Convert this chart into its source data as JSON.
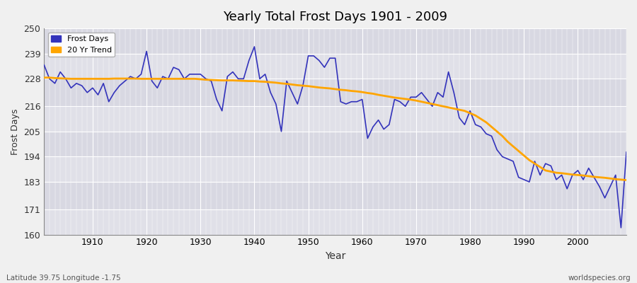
{
  "title": "Yearly Total Frost Days 1901 - 2009",
  "xlabel": "Year",
  "ylabel": "Frost Days",
  "footer_left": "Latitude 39.75 Longitude -1.75",
  "footer_right": "worldspecies.org",
  "legend_labels": [
    "Frost Days",
    "20 Yr Trend"
  ],
  "line_color": "#3333bb",
  "trend_color": "#FFA500",
  "background_color": "#f0f0f0",
  "plot_bg_color": "#e8e8ee",
  "ylim": [
    160,
    250
  ],
  "yticks": [
    160,
    171,
    183,
    194,
    205,
    216,
    228,
    239,
    250
  ],
  "xlim": [
    1901,
    2009
  ],
  "years": [
    1901,
    1902,
    1903,
    1904,
    1905,
    1906,
    1907,
    1908,
    1909,
    1910,
    1911,
    1912,
    1913,
    1914,
    1915,
    1916,
    1917,
    1918,
    1919,
    1920,
    1921,
    1922,
    1923,
    1924,
    1925,
    1926,
    1927,
    1928,
    1929,
    1930,
    1931,
    1932,
    1933,
    1934,
    1935,
    1936,
    1937,
    1938,
    1939,
    1940,
    1941,
    1942,
    1943,
    1944,
    1945,
    1946,
    1947,
    1948,
    1949,
    1950,
    1951,
    1952,
    1953,
    1954,
    1955,
    1956,
    1957,
    1958,
    1959,
    1960,
    1961,
    1962,
    1963,
    1964,
    1965,
    1966,
    1967,
    1968,
    1969,
    1970,
    1971,
    1972,
    1973,
    1974,
    1975,
    1976,
    1977,
    1978,
    1979,
    1980,
    1981,
    1982,
    1983,
    1984,
    1985,
    1986,
    1987,
    1988,
    1989,
    1990,
    1991,
    1992,
    1993,
    1994,
    1995,
    1996,
    1997,
    1998,
    1999,
    2000,
    2001,
    2002,
    2003,
    2004,
    2005,
    2006,
    2007,
    2008,
    2009
  ],
  "frost_days": [
    234,
    228,
    226,
    231,
    228,
    224,
    226,
    225,
    222,
    224,
    221,
    226,
    218,
    222,
    225,
    227,
    229,
    228,
    230,
    240,
    227,
    224,
    229,
    228,
    233,
    232,
    228,
    230,
    230,
    230,
    228,
    227,
    219,
    214,
    229,
    231,
    228,
    228,
    236,
    242,
    228,
    230,
    222,
    217,
    205,
    227,
    222,
    217,
    225,
    238,
    238,
    236,
    233,
    237,
    237,
    218,
    217,
    218,
    218,
    219,
    202,
    207,
    210,
    206,
    208,
    219,
    218,
    216,
    220,
    220,
    222,
    219,
    216,
    222,
    220,
    231,
    222,
    211,
    208,
    214,
    208,
    207,
    204,
    203,
    197,
    194,
    193,
    192,
    185,
    184,
    183,
    192,
    186,
    191,
    190,
    184,
    186,
    180,
    186,
    188,
    184,
    189,
    185,
    181,
    176,
    181,
    186,
    163,
    196
  ],
  "trend": [
    228.5,
    228.5,
    228.3,
    228.2,
    228.1,
    228.0,
    228.0,
    228.0,
    228.0,
    228.0,
    228.0,
    228.0,
    228.0,
    228.1,
    228.1,
    228.1,
    228.1,
    228.1,
    228.0,
    228.0,
    228.0,
    228.0,
    228.0,
    228.0,
    228.0,
    228.0,
    228.0,
    228.0,
    228.0,
    227.8,
    227.6,
    227.5,
    227.4,
    227.3,
    227.3,
    227.3,
    227.2,
    227.1,
    227.0,
    227.0,
    226.8,
    226.7,
    226.5,
    226.3,
    226.0,
    225.8,
    225.5,
    225.2,
    225.0,
    224.8,
    224.5,
    224.2,
    224.0,
    223.8,
    223.5,
    223.2,
    223.0,
    222.7,
    222.5,
    222.2,
    221.8,
    221.5,
    221.0,
    220.6,
    220.2,
    219.8,
    219.5,
    219.2,
    218.9,
    218.5,
    218.0,
    217.5,
    217.0,
    216.5,
    216.0,
    215.5,
    215.0,
    214.5,
    214.0,
    213.0,
    212.0,
    210.5,
    209.0,
    207.0,
    205.0,
    203.0,
    200.5,
    198.5,
    196.5,
    194.5,
    192.5,
    191.0,
    189.5,
    188.0,
    187.5,
    187.0,
    186.8,
    186.5,
    186.2,
    186.0,
    185.8,
    185.5,
    185.2,
    185.0,
    184.8,
    184.5,
    184.2,
    184.0,
    183.8
  ]
}
